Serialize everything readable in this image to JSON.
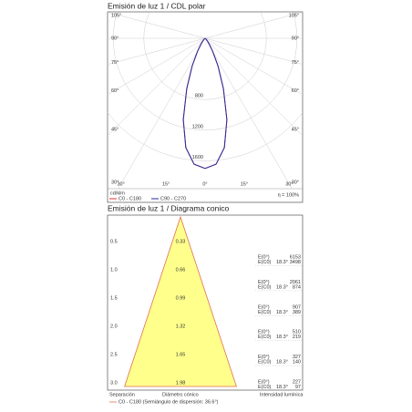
{
  "chart_data": [
    {
      "type": "polar",
      "title": "Emisión de luz 1 / CDL polar",
      "unit": "cd/klm",
      "angles": [
        0,
        5,
        10,
        15,
        20,
        25,
        30,
        35,
        40,
        45,
        50,
        55,
        60,
        65,
        70,
        75,
        80,
        85,
        90
      ],
      "series": [
        {
          "name": "C0 - C180",
          "color": "#e03030",
          "values": [
            1700,
            1650,
            1450,
            1100,
            700,
            400,
            200,
            100,
            50,
            20,
            8,
            3,
            0,
            0,
            0,
            0,
            0,
            0,
            0
          ]
        },
        {
          "name": "C90 - C270",
          "color": "#2a2aa0",
          "values": [
            1700,
            1650,
            1450,
            1100,
            700,
            400,
            200,
            100,
            50,
            20,
            8,
            3,
            0,
            0,
            0,
            0,
            0,
            0,
            0
          ]
        }
      ],
      "rticks": [
        800,
        1200,
        1600
      ],
      "side_ticks": [
        {
          "value": 105,
          "label": "105°"
        },
        {
          "value": 90,
          "label": "90°"
        },
        {
          "value": 75,
          "label": "75°"
        },
        {
          "value": 60,
          "label": "60°"
        },
        {
          "value": 45,
          "label": "45°"
        },
        {
          "value": 30,
          "label": "30°"
        }
      ],
      "bottom_ticks": [
        {
          "value": -30,
          "label": "30°"
        },
        {
          "value": -15,
          "label": "15°"
        },
        {
          "value": 0,
          "label": "0°"
        },
        {
          "value": 15,
          "label": "15°"
        },
        {
          "value": 30,
          "label": "30°"
        }
      ],
      "efficiency": "η = 100%"
    },
    {
      "type": "cone",
      "title": "Emisión de luz 1 / Diagrama conico",
      "heights": [
        0.5,
        {
          "value": 1,
          "label": "1.0"
        },
        1.5,
        {
          "value": 2,
          "label": "2.0"
        },
        2.5,
        {
          "value": 3,
          "label": "3.0"
        }
      ],
      "diameters": [
        0.33,
        0.66,
        0.99,
        1.32,
        1.65,
        1.98
      ],
      "e_labels": [
        "E(0°)",
        "E(C0)"
      ],
      "angle": "18.3°",
      "e0": [
        6153,
        2061,
        907,
        510,
        327,
        227
      ],
      "ec0": [
        3498,
        874,
        389,
        219,
        140,
        97
      ],
      "footer": [
        "Separación",
        "Diámetro cónico",
        "Intensidad lumínica"
      ],
      "legend": "C0 - C180 (Semiángulo de dispersión: 36.6°)",
      "color": "#ffff8c",
      "edge": "#e07050"
    }
  ]
}
